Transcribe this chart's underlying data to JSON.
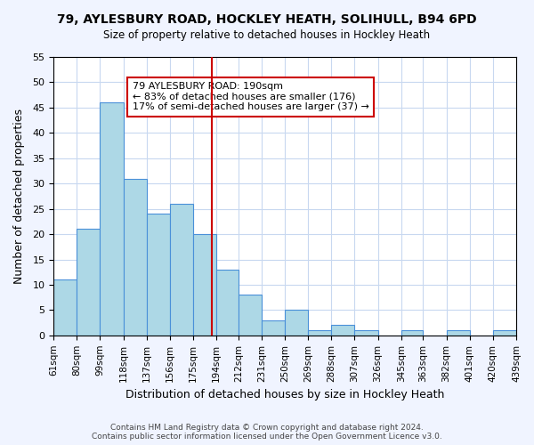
{
  "title": "79, AYLESBURY ROAD, HOCKLEY HEATH, SOLIHULL, B94 6PD",
  "subtitle": "Size of property relative to detached houses in Hockley Heath",
  "xlabel": "Distribution of detached houses by size in Hockley Heath",
  "ylabel": "Number of detached properties",
  "bin_edges": [
    61,
    80,
    99,
    118,
    137,
    156,
    175,
    194,
    212,
    231,
    250,
    269,
    288,
    307,
    326,
    345,
    363,
    382,
    401,
    420,
    439
  ],
  "bar_heights": [
    11,
    21,
    46,
    31,
    24,
    26,
    20,
    13,
    8,
    3,
    5,
    1,
    2,
    1,
    0,
    1,
    0,
    1,
    0,
    1
  ],
  "bar_color": "#add8e6",
  "bar_edge_color": "#4a90d9",
  "property_size": 190,
  "vline_color": "#cc0000",
  "annotation_text": "79 AYLESBURY ROAD: 190sqm\n← 83% of detached houses are smaller (176)\n17% of semi-detached houses are larger (37) →",
  "annotation_box_edge_color": "#cc0000",
  "ylim": [
    0,
    55
  ],
  "yticks": [
    0,
    5,
    10,
    15,
    20,
    25,
    30,
    35,
    40,
    45,
    50,
    55
  ],
  "tick_labels": [
    "61sqm",
    "80sqm",
    "99sqm",
    "118sqm",
    "137sqm",
    "156sqm",
    "175sqm",
    "194sqm",
    "212sqm",
    "231sqm",
    "250sqm",
    "269sqm",
    "288sqm",
    "307sqm",
    "326sqm",
    "345sqm",
    "363sqm",
    "382sqm",
    "401sqm",
    "420sqm",
    "439sqm"
  ],
  "footer": "Contains HM Land Registry data © Crown copyright and database right 2024.\nContains public sector information licensed under the Open Government Licence v3.0.",
  "bg_color": "#f0f4ff",
  "plot_bg_color": "#ffffff",
  "grid_color": "#c8d8f0"
}
